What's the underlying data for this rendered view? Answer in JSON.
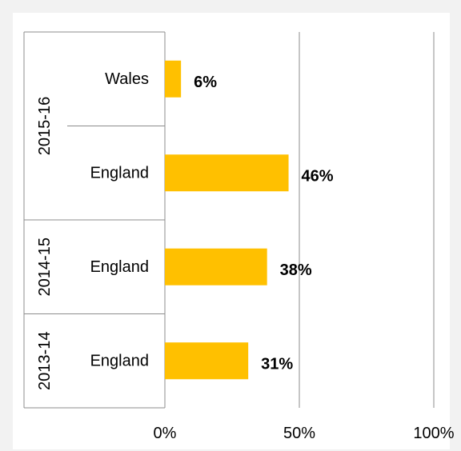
{
  "chart_data": {
    "type": "bar",
    "orientation": "horizontal",
    "groups": [
      {
        "label": "2015-16",
        "categories": [
          "Wales",
          "England"
        ]
      },
      {
        "label": "2014-15",
        "categories": [
          "England"
        ]
      },
      {
        "label": "2013-14",
        "categories": [
          "England"
        ]
      }
    ],
    "rows": [
      {
        "group": "2015-16",
        "category": "Wales",
        "value": 6,
        "label": "6%"
      },
      {
        "group": "2015-16",
        "category": "England",
        "value": 46,
        "label": "46%"
      },
      {
        "group": "2014-15",
        "category": "England",
        "value": 38,
        "label": "38%"
      },
      {
        "group": "2013-14",
        "category": "England",
        "value": 31,
        "label": "31%"
      }
    ],
    "xlim": [
      0,
      100
    ],
    "xticks": [
      {
        "value": 0,
        "label": "0%"
      },
      {
        "value": 50,
        "label": "50%"
      },
      {
        "value": 100,
        "label": "100%"
      }
    ],
    "grid": true,
    "bar_color": "#ffc000",
    "title": "",
    "xlabel": "",
    "ylabel": ""
  }
}
